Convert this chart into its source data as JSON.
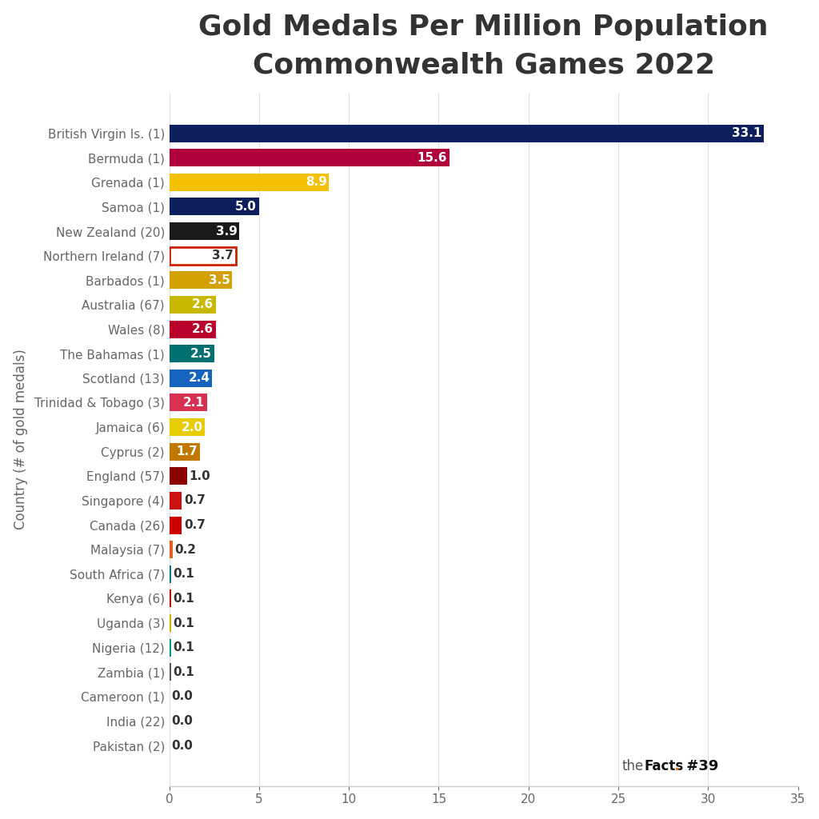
{
  "title": "Gold Medals Per Million Population\nCommonwealth Games 2022",
  "ylabel": "Country (# of gold medals)",
  "categories": [
    "British Virgin Is. (1)",
    "Bermuda (1)",
    "Grenada (1)",
    "Samoa (1)",
    "New Zealand (20)",
    "Northern Ireland (7)",
    "Barbados (1)",
    "Australia (67)",
    "Wales (8)",
    "The Bahamas (1)",
    "Scotland (13)",
    "Trinidad & Tobago (3)",
    "Jamaica (6)",
    "Cyprus (2)",
    "England (57)",
    "Singapore (4)",
    "Canada (26)",
    "Malaysia (7)",
    "South Africa (7)",
    "Kenya (6)",
    "Uganda (3)",
    "Nigeria (12)",
    "Zambia (1)",
    "Cameroon (1)",
    "India (22)",
    "Pakistan (2)"
  ],
  "values": [
    33.1,
    15.6,
    8.9,
    5.0,
    3.9,
    3.7,
    3.5,
    2.6,
    2.6,
    2.5,
    2.4,
    2.1,
    2.0,
    1.7,
    1.0,
    0.7,
    0.7,
    0.2,
    0.1,
    0.1,
    0.1,
    0.1,
    0.1,
    0.0,
    0.0,
    0.0
  ],
  "bar_colors": [
    "#0d1f5c",
    "#b0003a",
    "#f5c000",
    "#0d1f5c",
    "#1a1a1a",
    "none",
    "#d4a000",
    "#c8b800",
    "#b8002a",
    "#007070",
    "#1565c0",
    "#d83050",
    "#e8cc00",
    "#c07800",
    "#8b0000",
    "#cc1111",
    "#cc0000",
    "#e06020",
    "#007090",
    "#cc0000",
    "#ccb000",
    "#009090",
    "#555555",
    "#aaaaaa",
    "#aaaaaa",
    "#aaaaaa"
  ],
  "northern_ireland_border_color": "#cc2200",
  "xlim": [
    0,
    35
  ],
  "xticks": [
    0,
    5,
    10,
    15,
    20,
    25,
    30,
    35
  ],
  "background_color": "#ffffff",
  "title_fontsize": 26,
  "label_fontsize": 11,
  "tick_fontsize": 11,
  "bar_label_fontsize": 11,
  "bar_height": 0.72,
  "label_color_dark": "#333333",
  "label_color_light": "#ffffff",
  "axis_label_color": "#666666",
  "grid_color": "#e0e0e0",
  "title_color": "#333333"
}
